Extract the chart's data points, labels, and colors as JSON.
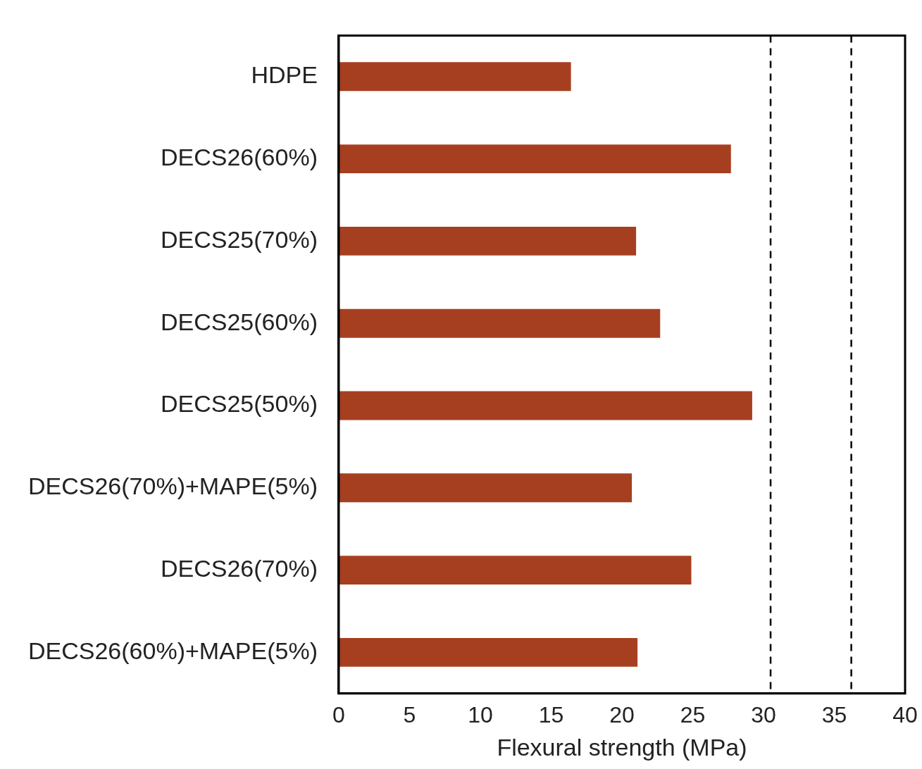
{
  "chart_data": {
    "type": "bar",
    "orientation": "horizontal",
    "xlabel": "Flexural strength (MPa)",
    "categories": [
      "HDPE",
      "DECS26(60%)",
      "DECS25(70%)",
      "DECS25(60%)",
      "DECS25(50%)",
      "DECS26(70%)+MAPE(5%)",
      "DECS26(70%)",
      "DECS26(60%)+MAPE(5%)"
    ],
    "values": [
      16.4,
      27.7,
      21.0,
      22.7,
      29.2,
      20.7,
      24.9,
      21.1
    ],
    "color": "#a63f20",
    "xlim": [
      0,
      40
    ],
    "xticks": [
      0,
      5,
      10,
      15,
      20,
      25,
      30,
      35,
      40
    ],
    "ref_lines": [
      {
        "axis": "x",
        "value": 30.5,
        "color": "#000000",
        "line_style": "dashed"
      },
      {
        "axis": "x",
        "value": 36.2,
        "color": "#000000",
        "line_style": "dashed"
      }
    ],
    "grid": false,
    "legend": false
  }
}
